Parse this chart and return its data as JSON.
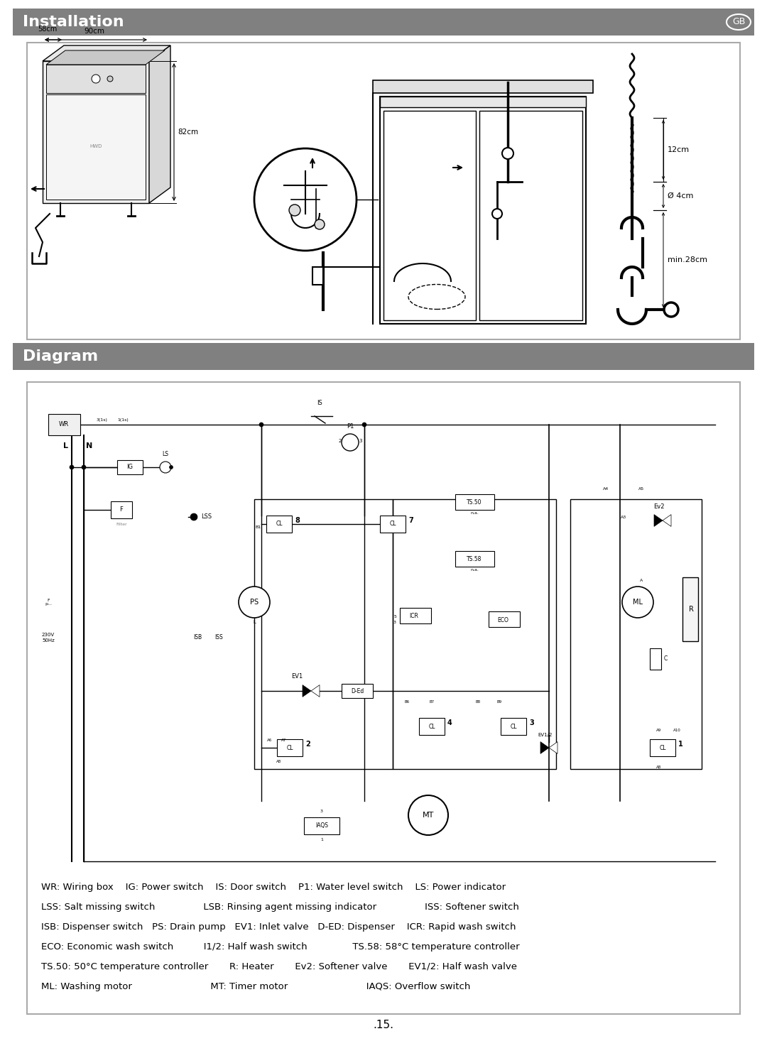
{
  "page_bg": "#ffffff",
  "header_bg": "#808080",
  "header1_text": "Installation",
  "header2_text": "Diagram",
  "header_badge": "GB",
  "legend_lines": [
    "WR: Wiring box    IG: Power switch    IS: Door switch    P1: Water level switch    LS: Power indicator",
    "LSS: Salt missing switch                LSB: Rinsing agent missing indicator                ISS: Softener switch",
    "ISB: Dispenser switch   PS: Drain pump   EV1: Inlet valve   D-ED: Dispenser    ICR: Rapid wash switch",
    "ECO: Economic wash switch          I1/2: Half wash switch               TS.58: 58°C temperature controller",
    "TS.50: 50°C temperature controller       R: Heater       Ev2: Softener valve       EV1/2: Half wash valve",
    "ML: Washing motor                          MT: Timer motor                          IAQS: Overflow switch"
  ],
  "page_number": ".15.",
  "dim_90cm": "90cm",
  "dim_58cm": "58cm",
  "dim_82cm": "82cm",
  "dim_12cm": "12cm",
  "dim_4cm": "Ø 4cm",
  "dim_28cm": "min.28cm"
}
